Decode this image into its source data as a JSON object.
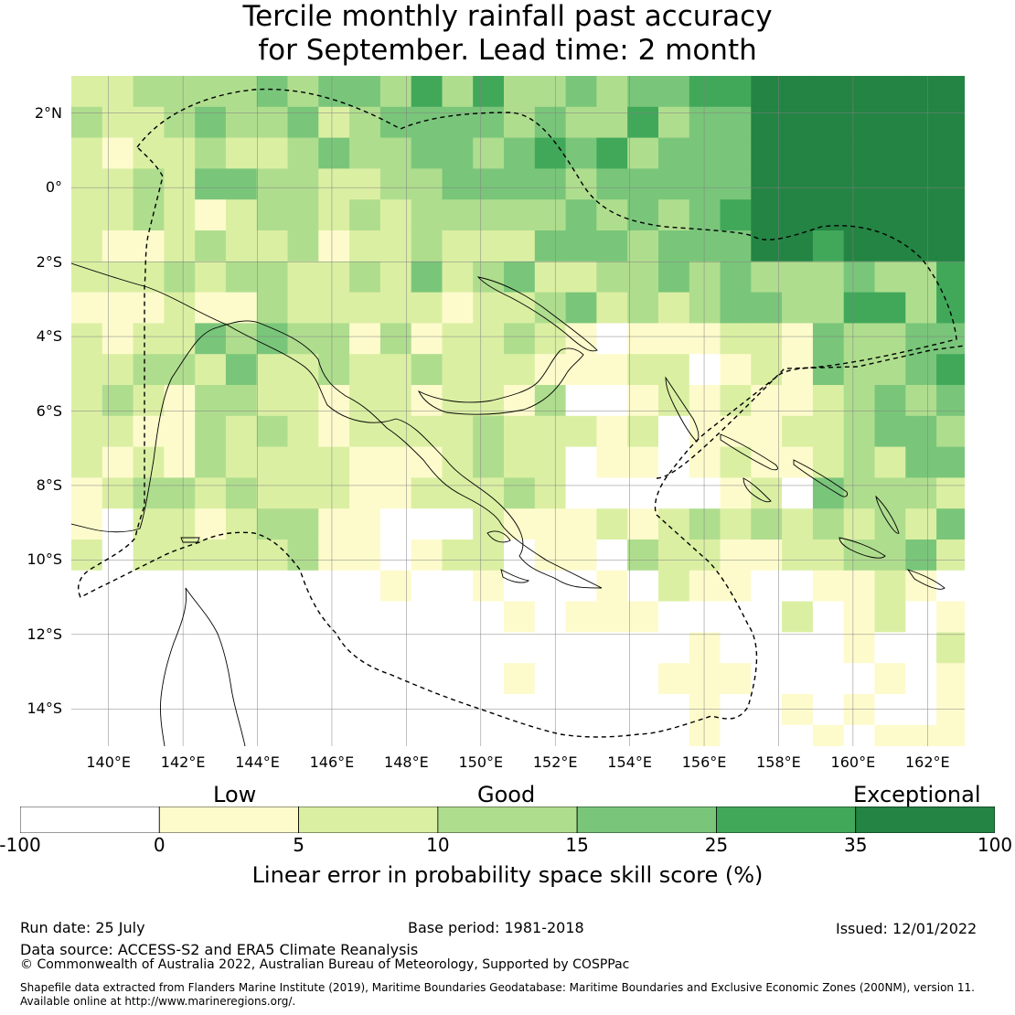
{
  "title": {
    "line1": "Tercile monthly rainfall past accuracy",
    "line2": "for September. Lead time: 2 month"
  },
  "map": {
    "lat_labels": [
      "2°N",
      "0°",
      "2°S",
      "4°S",
      "6°S",
      "8°S",
      "10°S",
      "12°S",
      "14°S"
    ],
    "lon_labels": [
      "140°E",
      "142°E",
      "144°E",
      "146°E",
      "148°E",
      "150°E",
      "152°E",
      "154°E",
      "156°E",
      "158°E",
      "160°E",
      "162°E"
    ],
    "lon_range": [
      139.0,
      163.0
    ],
    "lat_range": [
      -15.0,
      3.0
    ],
    "grid_step_deg": 2,
    "cell_deg": 0.83
  },
  "colorbar": {
    "category_labels": [
      "Low",
      "Good",
      "Exceptional"
    ],
    "tick_labels": [
      "-100",
      "0",
      "5",
      "10",
      "15",
      "25",
      "35",
      "100"
    ],
    "colors": [
      "#ffffff",
      "#fdfbcc",
      "#dbefa3",
      "#afdd8e",
      "#79c67a",
      "#41a85a",
      "#238443"
    ],
    "label": "Linear error in probability space skill score (%)"
  },
  "footer": {
    "run_date": "Run date: 25 July",
    "base_period": "Base period: 1981-2018",
    "issued": "Issued: 12/01/2022",
    "data_source": "Data source: ACCESS-S2 and ERA5 Climate Reanalysis",
    "copyright": "© Commonwealth of Australia 2022, Australian Bureau of Meteorology, Supported by COSPPac",
    "shapefile_line1": "Shapefile data extracted from Flanders Marine Institute (2019), Maritime Boundaries Geodatabase: Maritime Boundaries and Exclusive Economic Zones (200NM), version 11.",
    "shapefile_line2": "Available online at http://www.marineregions.org/."
  }
}
